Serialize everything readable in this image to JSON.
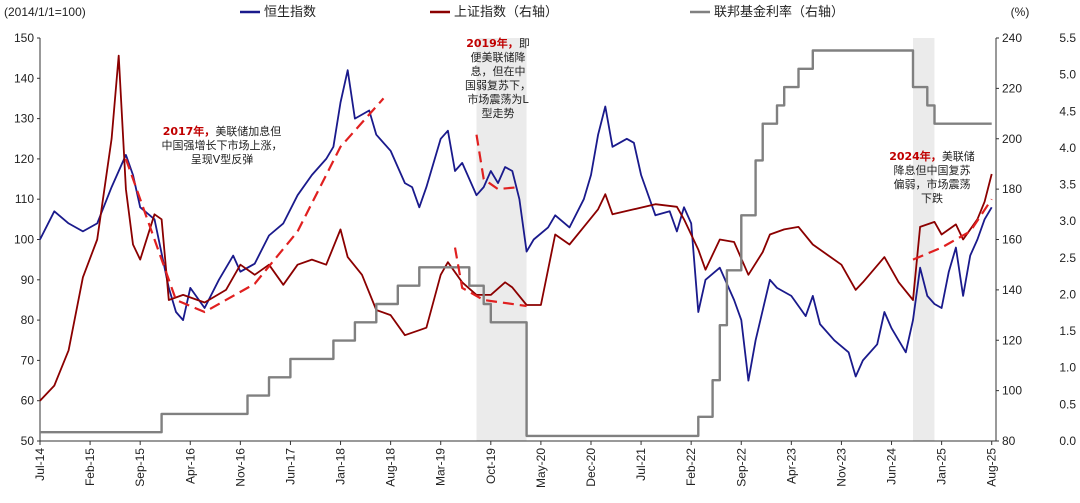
{
  "chart_data": {
    "type": "line",
    "left_unit_label": "(2014/1/1=100)",
    "right_unit_label": "(%)",
    "x_tick_labels": [
      "Jul-14",
      "Feb-15",
      "Sep-15",
      "Apr-16",
      "Nov-16",
      "Jun-17",
      "Jan-18",
      "Aug-18",
      "Mar-19",
      "Oct-19",
      "May-20",
      "Dec-20",
      "Jul-21",
      "Feb-22",
      "Sep-22",
      "Apr-23",
      "Nov-23",
      "Jun-24",
      "Jan-25",
      "Aug-25"
    ],
    "y_left": {
      "min": 50,
      "max": 150,
      "ticks": [
        50,
        60,
        70,
        80,
        90,
        100,
        110,
        120,
        130,
        140,
        150
      ]
    },
    "y_right1": {
      "min": 80,
      "max": 240,
      "ticks": [
        80,
        100,
        120,
        140,
        160,
        180,
        200,
        220,
        240
      ]
    },
    "y_right2": {
      "min": 0.0,
      "max": 5.5,
      "ticks": [
        "0.0",
        "0.5",
        "1.0",
        "1.5",
        "2.0",
        "2.5",
        "3.0",
        "3.5",
        "4.0",
        "4.5",
        "5.0",
        "5.5"
      ]
    },
    "legend": [
      {
        "name": "恒生指数",
        "color": "#1a1a8c"
      },
      {
        "name": "上证指数（右轴）",
        "color": "#8b0000"
      },
      {
        "name": "联邦基金利率（右轴）",
        "color": "#808080"
      }
    ],
    "shaded_periods": [
      [
        "2019-08",
        "2020-03"
      ],
      [
        "2024-09",
        "2024-12"
      ]
    ],
    "series": [
      {
        "name": "恒生指数",
        "axis": "left",
        "color": "#1a1a8c",
        "points": [
          [
            "2014-07",
            100
          ],
          [
            "2014-09",
            107
          ],
          [
            "2014-11",
            104
          ],
          [
            "2015-01",
            102
          ],
          [
            "2015-03",
            104
          ],
          [
            "2015-05",
            113
          ],
          [
            "2015-07",
            121
          ],
          [
            "2015-08",
            116
          ],
          [
            "2015-09",
            108
          ],
          [
            "2015-11",
            105
          ],
          [
            "2016-01",
            88
          ],
          [
            "2016-02",
            82
          ],
          [
            "2016-03",
            80
          ],
          [
            "2016-04",
            88
          ],
          [
            "2016-06",
            83
          ],
          [
            "2016-08",
            90
          ],
          [
            "2016-10",
            96
          ],
          [
            "2016-11",
            92
          ],
          [
            "2017-01",
            94
          ],
          [
            "2017-03",
            101
          ],
          [
            "2017-05",
            104
          ],
          [
            "2017-07",
            111
          ],
          [
            "2017-09",
            116
          ],
          [
            "2017-11",
            120
          ],
          [
            "2017-12",
            123
          ],
          [
            "2018-01",
            134
          ],
          [
            "2018-02",
            142
          ],
          [
            "2018-03",
            130
          ],
          [
            "2018-05",
            132
          ],
          [
            "2018-06",
            126
          ],
          [
            "2018-08",
            122
          ],
          [
            "2018-10",
            114
          ],
          [
            "2018-11",
            113
          ],
          [
            "2018-12",
            108
          ],
          [
            "2019-01",
            113
          ],
          [
            "2019-03",
            125
          ],
          [
            "2019-04",
            127
          ],
          [
            "2019-05",
            117
          ],
          [
            "2019-06",
            119
          ],
          [
            "2019-08",
            111
          ],
          [
            "2019-09",
            113
          ],
          [
            "2019-10",
            117
          ],
          [
            "2019-11",
            114
          ],
          [
            "2019-12",
            118
          ],
          [
            "2020-01",
            117
          ],
          [
            "2020-02",
            110
          ],
          [
            "2020-03",
            97
          ],
          [
            "2020-04",
            100
          ],
          [
            "2020-06",
            103
          ],
          [
            "2020-07",
            106
          ],
          [
            "2020-09",
            103
          ],
          [
            "2020-11",
            110
          ],
          [
            "2020-12",
            116
          ],
          [
            "2021-01",
            126
          ],
          [
            "2021-02",
            133
          ],
          [
            "2021-03",
            123
          ],
          [
            "2021-05",
            125
          ],
          [
            "2021-06",
            124
          ],
          [
            "2021-07",
            116
          ],
          [
            "2021-09",
            106
          ],
          [
            "2021-11",
            107
          ],
          [
            "2021-12",
            102
          ],
          [
            "2022-01",
            108
          ],
          [
            "2022-02",
            104
          ],
          [
            "2022-03",
            82
          ],
          [
            "2022-04",
            90
          ],
          [
            "2022-06",
            93
          ],
          [
            "2022-08",
            85
          ],
          [
            "2022-09",
            80
          ],
          [
            "2022-10",
            65
          ],
          [
            "2022-11",
            75
          ],
          [
            "2023-01",
            90
          ],
          [
            "2023-02",
            88
          ],
          [
            "2023-04",
            86
          ],
          [
            "2023-06",
            81
          ],
          [
            "2023-07",
            86
          ],
          [
            "2023-08",
            79
          ],
          [
            "2023-10",
            75
          ],
          [
            "2023-12",
            72
          ],
          [
            "2024-01",
            66
          ],
          [
            "2024-02",
            70
          ],
          [
            "2024-04",
            74
          ],
          [
            "2024-05",
            82
          ],
          [
            "2024-06",
            78
          ],
          [
            "2024-08",
            72
          ],
          [
            "2024-09",
            80
          ],
          [
            "2024-10",
            93
          ],
          [
            "2024-11",
            86
          ],
          [
            "2024-12",
            84
          ],
          [
            "2025-01",
            83
          ],
          [
            "2025-02",
            92
          ],
          [
            "2025-03",
            98
          ],
          [
            "2025-04",
            86
          ],
          [
            "2025-05",
            96
          ],
          [
            "2025-06",
            100
          ],
          [
            "2025-07",
            105
          ],
          [
            "2025-08",
            108
          ]
        ]
      },
      {
        "name": "上证指数（右轴）",
        "axis": "right1",
        "color": "#8b0000",
        "points": [
          [
            "2014-07",
            96
          ],
          [
            "2014-09",
            102
          ],
          [
            "2014-11",
            116
          ],
          [
            "2015-01",
            145
          ],
          [
            "2015-03",
            160
          ],
          [
            "2015-05",
            200
          ],
          [
            "2015-06",
            233
          ],
          [
            "2015-07",
            180
          ],
          [
            "2015-08",
            158
          ],
          [
            "2015-09",
            152
          ],
          [
            "2015-11",
            170
          ],
          [
            "2015-12",
            168
          ],
          [
            "2016-01",
            136
          ],
          [
            "2016-03",
            138
          ],
          [
            "2016-06",
            135
          ],
          [
            "2016-09",
            140
          ],
          [
            "2016-11",
            150
          ],
          [
            "2017-01",
            146
          ],
          [
            "2017-03",
            150
          ],
          [
            "2017-05",
            142
          ],
          [
            "2017-07",
            150
          ],
          [
            "2017-09",
            152
          ],
          [
            "2017-11",
            150
          ],
          [
            "2018-01",
            164
          ],
          [
            "2018-02",
            153
          ],
          [
            "2018-04",
            146
          ],
          [
            "2018-06",
            132
          ],
          [
            "2018-08",
            130
          ],
          [
            "2018-10",
            122
          ],
          [
            "2018-12",
            124
          ],
          [
            "2019-01",
            125
          ],
          [
            "2019-03",
            146
          ],
          [
            "2019-04",
            151
          ],
          [
            "2019-06",
            143
          ],
          [
            "2019-08",
            138
          ],
          [
            "2019-10",
            138
          ],
          [
            "2019-12",
            143
          ],
          [
            "2020-01",
            141
          ],
          [
            "2020-03",
            134
          ],
          [
            "2020-05",
            134
          ],
          [
            "2020-07",
            162
          ],
          [
            "2020-09",
            158
          ],
          [
            "2020-11",
            165
          ],
          [
            "2021-01",
            172
          ],
          [
            "2021-02",
            178
          ],
          [
            "2021-03",
            170
          ],
          [
            "2021-06",
            172
          ],
          [
            "2021-09",
            174
          ],
          [
            "2021-12",
            173
          ],
          [
            "2022-01",
            168
          ],
          [
            "2022-03",
            156
          ],
          [
            "2022-04",
            148
          ],
          [
            "2022-06",
            160
          ],
          [
            "2022-08",
            159
          ],
          [
            "2022-10",
            146
          ],
          [
            "2022-12",
            155
          ],
          [
            "2023-01",
            162
          ],
          [
            "2023-03",
            164
          ],
          [
            "2023-05",
            165
          ],
          [
            "2023-07",
            158
          ],
          [
            "2023-09",
            154
          ],
          [
            "2023-11",
            150
          ],
          [
            "2024-01",
            140
          ],
          [
            "2024-02",
            143
          ],
          [
            "2024-05",
            153
          ],
          [
            "2024-07",
            143
          ],
          [
            "2024-09",
            136
          ],
          [
            "2024-10",
            165
          ],
          [
            "2024-11",
            166
          ],
          [
            "2024-12",
            167
          ],
          [
            "2025-01",
            162
          ],
          [
            "2025-03",
            166
          ],
          [
            "2025-04",
            160
          ],
          [
            "2025-06",
            168
          ],
          [
            "2025-07",
            175
          ],
          [
            "2025-08",
            186
          ]
        ]
      },
      {
        "name": "联邦基金利率（右轴）",
        "axis": "right2",
        "color": "#808080",
        "points": [
          [
            "2014-07",
            0.12
          ],
          [
            "2015-12",
            0.12
          ],
          [
            "2015-12",
            0.37
          ],
          [
            "2016-12",
            0.37
          ],
          [
            "2016-12",
            0.62
          ],
          [
            "2017-03",
            0.62
          ],
          [
            "2017-03",
            0.87
          ],
          [
            "2017-06",
            0.87
          ],
          [
            "2017-06",
            1.12
          ],
          [
            "2017-12",
            1.12
          ],
          [
            "2017-12",
            1.37
          ],
          [
            "2018-03",
            1.37
          ],
          [
            "2018-03",
            1.62
          ],
          [
            "2018-06",
            1.62
          ],
          [
            "2018-06",
            1.87
          ],
          [
            "2018-09",
            1.87
          ],
          [
            "2018-09",
            2.12
          ],
          [
            "2018-12",
            2.12
          ],
          [
            "2018-12",
            2.37
          ],
          [
            "2019-07",
            2.37
          ],
          [
            "2019-07",
            2.12
          ],
          [
            "2019-09",
            2.12
          ],
          [
            "2019-09",
            1.87
          ],
          [
            "2019-10",
            1.87
          ],
          [
            "2019-10",
            1.62
          ],
          [
            "2020-03",
            1.62
          ],
          [
            "2020-03",
            0.07
          ],
          [
            "2022-03",
            0.07
          ],
          [
            "2022-03",
            0.33
          ],
          [
            "2022-05",
            0.33
          ],
          [
            "2022-05",
            0.83
          ],
          [
            "2022-06",
            0.83
          ],
          [
            "2022-06",
            1.58
          ],
          [
            "2022-07",
            1.58
          ],
          [
            "2022-07",
            2.33
          ],
          [
            "2022-09",
            2.33
          ],
          [
            "2022-09",
            3.08
          ],
          [
            "2022-11",
            3.08
          ],
          [
            "2022-11",
            3.83
          ],
          [
            "2022-12",
            3.83
          ],
          [
            "2022-12",
            4.33
          ],
          [
            "2023-02",
            4.33
          ],
          [
            "2023-02",
            4.58
          ],
          [
            "2023-03",
            4.58
          ],
          [
            "2023-03",
            4.83
          ],
          [
            "2023-05",
            4.83
          ],
          [
            "2023-05",
            5.08
          ],
          [
            "2023-07",
            5.08
          ],
          [
            "2023-07",
            5.33
          ],
          [
            "2024-09",
            5.33
          ],
          [
            "2024-09",
            4.83
          ],
          [
            "2024-11",
            4.83
          ],
          [
            "2024-11",
            4.58
          ],
          [
            "2024-12",
            4.58
          ],
          [
            "2024-12",
            4.33
          ],
          [
            "2025-08",
            4.33
          ]
        ]
      }
    ],
    "trend_curves": [
      [
        [
          "2015-07",
          120
        ],
        [
          "2016-02",
          85
        ],
        [
          "2016-06",
          82
        ],
        [
          "2017-01",
          89
        ],
        [
          "2017-07",
          102
        ],
        [
          "2018-01",
          123
        ],
        [
          "2018-07",
          135
        ]
      ],
      [
        [
          "2019-08",
          126
        ],
        [
          "2019-09",
          115
        ],
        [
          "2019-11",
          112.5
        ],
        [
          "2020-02",
          113
        ]
      ],
      [
        [
          "2019-05",
          98
        ],
        [
          "2019-06",
          88
        ],
        [
          "2019-09",
          85
        ],
        [
          "2020-03",
          83.5
        ]
      ],
      [
        [
          "2024-09",
          95
        ],
        [
          "2025-01",
          98
        ],
        [
          "2025-05",
          102
        ],
        [
          "2025-08",
          110
        ]
      ]
    ],
    "annotations": [
      {
        "key": "a2017",
        "lines": [
          "2017年，美联储加息但",
          "中国强增长下市场上涨，",
          "呈现V型反弹"
        ]
      },
      {
        "key": "a2019",
        "lines": [
          "2019年，即",
          "便美联储降",
          "息，但在中",
          "国弱复苏下，",
          "市场震荡为L",
          "型走势"
        ]
      },
      {
        "key": "a2024",
        "lines": [
          "2024年，美联储",
          "降息但中国复苏",
          "偏弱，市场震荡",
          "下跌"
        ]
      }
    ]
  }
}
